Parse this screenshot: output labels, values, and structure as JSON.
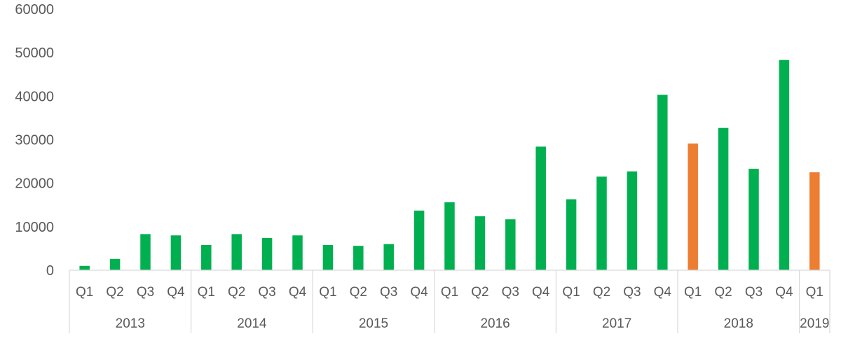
{
  "chart_data": {
    "type": "bar",
    "title": "",
    "xlabel": "",
    "ylabel": "",
    "ylim": [
      0,
      60000
    ],
    "yticks": [
      0,
      10000,
      20000,
      30000,
      40000,
      50000,
      60000
    ],
    "grid": false,
    "legend": "none",
    "years": [
      {
        "label": "2013",
        "quarters": [
          "Q1",
          "Q2",
          "Q3",
          "Q4"
        ]
      },
      {
        "label": "2014",
        "quarters": [
          "Q1",
          "Q2",
          "Q3",
          "Q4"
        ]
      },
      {
        "label": "2015",
        "quarters": [
          "Q1",
          "Q2",
          "Q3",
          "Q4"
        ]
      },
      {
        "label": "2016",
        "quarters": [
          "Q1",
          "Q2",
          "Q3",
          "Q4"
        ]
      },
      {
        "label": "2017",
        "quarters": [
          "Q1",
          "Q2",
          "Q3",
          "Q4"
        ]
      },
      {
        "label": "2018",
        "quarters": [
          "Q1",
          "Q2",
          "Q3",
          "Q4"
        ]
      },
      {
        "label": "2019",
        "quarters": [
          "Q1"
        ]
      }
    ],
    "values": [
      1000,
      2600,
      8300,
      8000,
      5800,
      8300,
      7400,
      8000,
      5800,
      5600,
      6000,
      13700,
      15600,
      12400,
      11700,
      28400,
      16300,
      21500,
      22700,
      40300,
      29100,
      32700,
      23300,
      48300,
      22500
    ],
    "highlight_indices": [
      20,
      24
    ],
    "colors": {
      "default": "#00b050",
      "highlight": "#ed7d31"
    }
  }
}
